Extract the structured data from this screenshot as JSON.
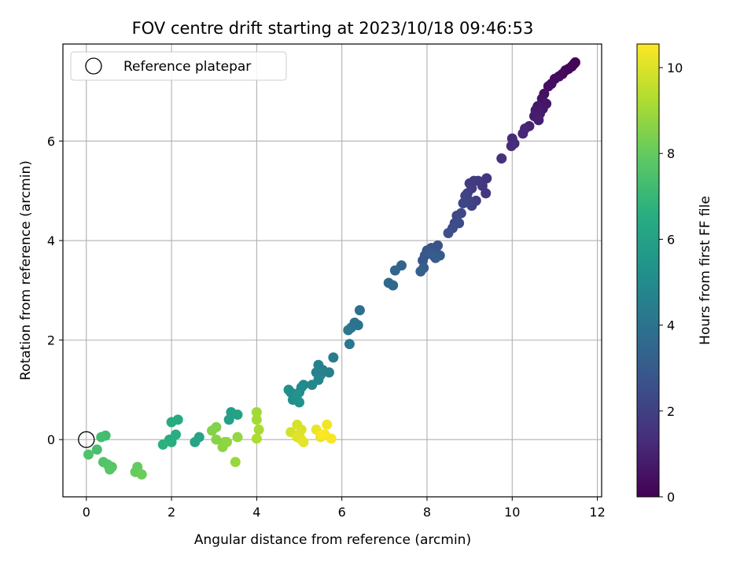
{
  "chart_data": {
    "type": "scatter",
    "title": "FOV centre drift starting at 2023/10/18 09:46:53",
    "xlabel": "Angular distance from reference (arcmin)",
    "ylabel": "Rotation from reference (arcmin)",
    "xlim": [
      -0.55,
      12.1
    ],
    "ylim": [
      -1.15,
      7.95
    ],
    "xticks": [
      0,
      2,
      4,
      6,
      8,
      10,
      12
    ],
    "yticks": [
      0,
      2,
      4,
      6
    ],
    "grid": true,
    "legend": {
      "placement": "top-left",
      "entries": [
        "Reference platepar"
      ]
    },
    "reference_point": {
      "x": 0,
      "y": 0,
      "label": "Reference platepar"
    },
    "colorbar": {
      "label": "Hours from first FF file",
      "min": 0,
      "max": 10.55,
      "ticks": [
        0,
        2,
        4,
        6,
        8,
        10
      ],
      "colormap": "viridis"
    },
    "series": [
      {
        "values": [
          [
            11.48,
            7.58,
            0.0
          ],
          [
            11.45,
            7.55,
            0.05
          ],
          [
            11.4,
            7.5,
            0.1
          ],
          [
            11.32,
            7.45,
            0.15
          ],
          [
            11.25,
            7.42,
            0.2
          ],
          [
            11.18,
            7.35,
            0.25
          ],
          [
            11.1,
            7.3,
            0.3
          ],
          [
            11.0,
            7.25,
            0.35
          ],
          [
            10.92,
            7.15,
            0.4
          ],
          [
            10.85,
            7.1,
            0.45
          ],
          [
            10.75,
            6.95,
            0.5
          ],
          [
            10.7,
            6.85,
            0.55
          ],
          [
            10.8,
            6.75,
            0.6
          ],
          [
            10.72,
            6.65,
            0.65
          ],
          [
            10.6,
            6.7,
            0.7
          ],
          [
            10.55,
            6.62,
            0.75
          ],
          [
            10.65,
            6.55,
            0.8
          ],
          [
            10.52,
            6.5,
            0.85
          ],
          [
            10.62,
            6.42,
            0.9
          ],
          [
            10.4,
            6.3,
            1.05
          ],
          [
            10.3,
            6.25,
            1.1
          ],
          [
            10.25,
            6.15,
            1.15
          ],
          [
            10.0,
            6.05,
            1.25
          ],
          [
            10.05,
            5.95,
            1.3
          ],
          [
            9.98,
            5.9,
            1.35
          ],
          [
            9.75,
            5.65,
            1.45
          ],
          [
            9.4,
            5.25,
            1.6
          ],
          [
            9.3,
            5.1,
            1.65
          ],
          [
            9.38,
            4.95,
            1.7
          ],
          [
            9.2,
            5.2,
            1.75
          ],
          [
            9.1,
            5.2,
            1.8
          ],
          [
            9.05,
            5.05,
            1.85
          ],
          [
            9.0,
            5.15,
            1.9
          ],
          [
            8.95,
            4.95,
            1.95
          ],
          [
            9.15,
            4.8,
            2.0
          ],
          [
            9.05,
            4.7,
            2.05
          ],
          [
            8.98,
            4.8,
            2.1
          ],
          [
            8.9,
            4.9,
            2.15
          ],
          [
            8.85,
            4.75,
            2.2
          ],
          [
            8.8,
            4.55,
            2.25
          ],
          [
            8.7,
            4.5,
            2.3
          ],
          [
            8.65,
            4.35,
            2.35
          ],
          [
            8.75,
            4.35,
            2.4
          ],
          [
            8.6,
            4.25,
            2.45
          ],
          [
            8.5,
            4.15,
            2.55
          ],
          [
            8.25,
            3.9,
            2.65
          ],
          [
            8.2,
            3.8,
            2.7
          ],
          [
            8.1,
            3.85,
            2.75
          ],
          [
            8.0,
            3.8,
            2.8
          ],
          [
            7.95,
            3.7,
            2.85
          ],
          [
            7.9,
            3.6,
            2.9
          ],
          [
            8.05,
            3.75,
            2.95
          ],
          [
            8.15,
            3.7,
            3.0
          ],
          [
            8.3,
            3.7,
            3.05
          ],
          [
            8.2,
            3.65,
            3.1
          ],
          [
            7.92,
            3.45,
            3.15
          ],
          [
            7.85,
            3.38,
            3.2
          ],
          [
            7.4,
            3.5,
            3.35
          ],
          [
            7.25,
            3.4,
            3.45
          ],
          [
            7.2,
            3.1,
            3.55
          ],
          [
            7.1,
            3.15,
            3.6
          ],
          [
            6.42,
            2.6,
            3.85
          ],
          [
            6.38,
            2.3,
            3.95
          ],
          [
            6.3,
            2.35,
            4.0
          ],
          [
            6.22,
            2.25,
            4.05
          ],
          [
            6.15,
            2.2,
            4.15
          ],
          [
            6.18,
            1.92,
            4.2
          ],
          [
            5.8,
            1.65,
            4.35
          ],
          [
            5.7,
            1.35,
            4.5
          ],
          [
            5.55,
            1.4,
            4.55
          ],
          [
            5.45,
            1.5,
            4.6
          ],
          [
            5.5,
            1.3,
            4.65
          ],
          [
            5.4,
            1.35,
            4.7
          ],
          [
            5.45,
            1.2,
            4.75
          ],
          [
            5.3,
            1.1,
            4.85
          ],
          [
            5.1,
            1.1,
            4.95
          ],
          [
            5.05,
            1.05,
            5.0
          ],
          [
            5.0,
            0.95,
            5.05
          ],
          [
            4.9,
            0.85,
            5.1
          ],
          [
            4.8,
            0.95,
            5.15
          ],
          [
            4.75,
            1.0,
            5.2
          ],
          [
            4.85,
            0.8,
            5.25
          ],
          [
            4.95,
            0.9,
            5.3
          ],
          [
            5.0,
            0.75,
            5.35
          ],
          [
            3.4,
            0.55,
            5.9
          ],
          [
            3.35,
            0.4,
            5.95
          ],
          [
            3.55,
            0.5,
            6.0
          ],
          [
            2.65,
            0.05,
            6.15
          ],
          [
            2.55,
            -0.05,
            6.2
          ],
          [
            2.15,
            0.4,
            6.4
          ],
          [
            2.0,
            0.35,
            6.45
          ],
          [
            2.1,
            0.1,
            6.5
          ],
          [
            1.95,
            0.0,
            6.55
          ],
          [
            2.0,
            -0.05,
            6.6
          ],
          [
            1.8,
            -0.1,
            6.7
          ],
          [
            0.45,
            0.08,
            7.25
          ],
          [
            0.35,
            0.05,
            7.3
          ],
          [
            0.25,
            -0.2,
            7.4
          ],
          [
            0.05,
            -0.3,
            7.55
          ],
          [
            0.4,
            -0.45,
            7.6
          ],
          [
            0.5,
            -0.5,
            7.65
          ],
          [
            0.6,
            -0.55,
            7.7
          ],
          [
            0.55,
            -0.6,
            7.75
          ],
          [
            1.2,
            -0.55,
            8.0
          ],
          [
            1.15,
            -0.65,
            8.05
          ],
          [
            1.3,
            -0.7,
            8.1
          ],
          [
            3.05,
            0.25,
            8.5
          ],
          [
            2.95,
            0.18,
            8.55
          ],
          [
            3.05,
            0.0,
            8.6
          ],
          [
            3.25,
            -0.05,
            8.65
          ],
          [
            3.2,
            -0.15,
            8.7
          ],
          [
            3.3,
            -0.05,
            8.75
          ],
          [
            3.55,
            0.05,
            8.8
          ],
          [
            3.5,
            -0.45,
            8.85
          ],
          [
            4.0,
            0.55,
            9.05
          ],
          [
            4.0,
            0.4,
            9.1
          ],
          [
            4.05,
            0.2,
            9.15
          ],
          [
            4.0,
            0.02,
            9.2
          ],
          [
            4.8,
            0.15,
            9.85
          ],
          [
            4.95,
            0.3,
            9.9
          ],
          [
            5.05,
            0.2,
            9.95
          ],
          [
            5.0,
            0.1,
            10.0
          ],
          [
            4.95,
            0.05,
            10.05
          ],
          [
            5.05,
            0.0,
            10.1
          ],
          [
            5.1,
            -0.05,
            10.15
          ],
          [
            5.4,
            0.2,
            10.25
          ],
          [
            5.5,
            0.05,
            10.3
          ],
          [
            5.65,
            0.3,
            10.35
          ],
          [
            5.6,
            0.1,
            10.4
          ],
          [
            5.75,
            0.02,
            10.45
          ],
          [
            5.55,
            0.1,
            10.5
          ]
        ]
      }
    ]
  }
}
